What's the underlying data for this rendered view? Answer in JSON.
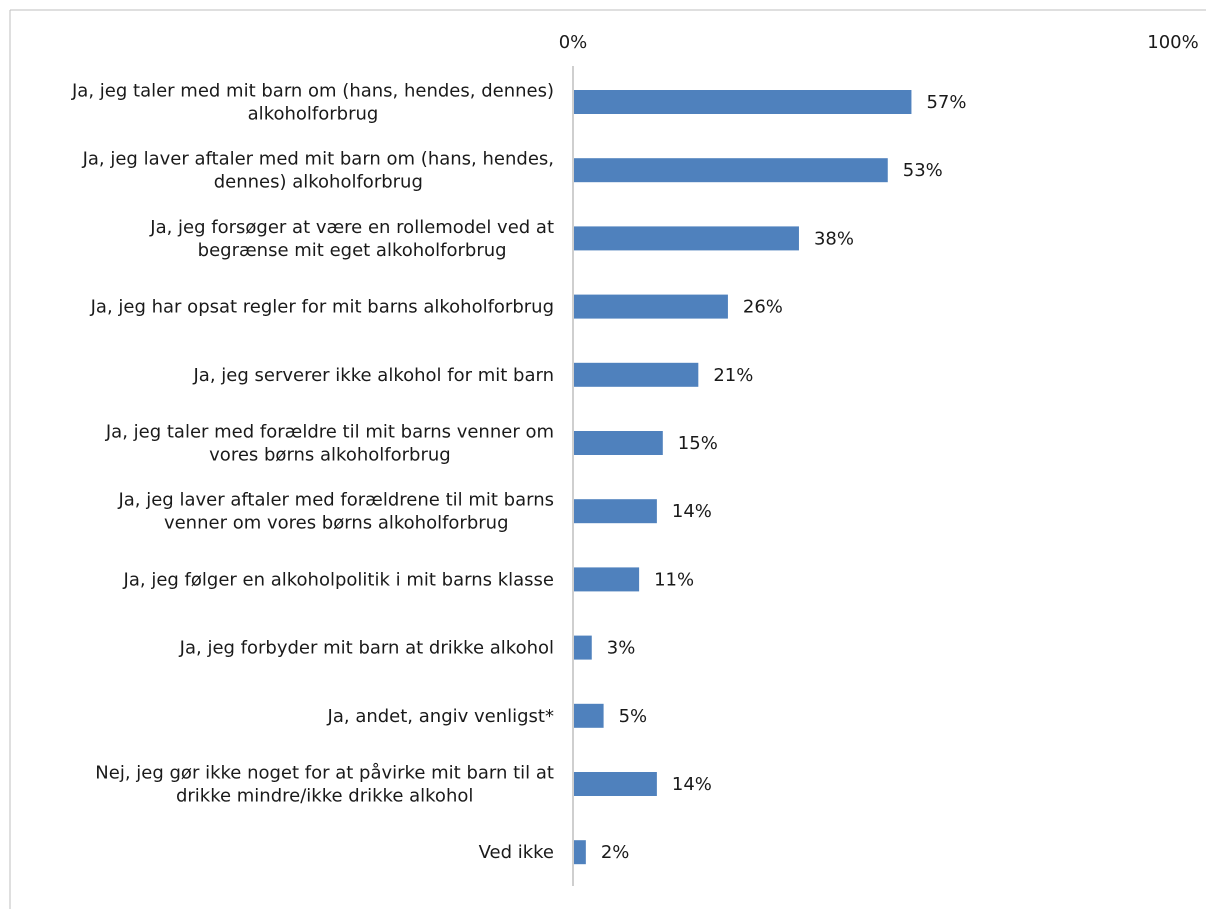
{
  "chart_data": {
    "type": "bar",
    "orientation": "horizontal",
    "title": "",
    "xlabel": "",
    "ylabel": "",
    "xlim": [
      0,
      100
    ],
    "x_ticks": [
      "0%",
      "100%"
    ],
    "x_tick_position": "top",
    "grid": false,
    "legend": "none",
    "bar_color": "#4f81bd",
    "value_suffix": "%",
    "categories": [
      [
        "Ja, jeg taler med mit barn om (hans, hendes, dennes)",
        "alkoholforbrug"
      ],
      [
        "Ja, jeg laver aftaler med mit barn om (hans, hendes,",
        "dennes) alkoholforbrug"
      ],
      [
        "Ja, jeg forsøger at være en rollemodel ved at",
        "begrænse mit eget alkoholforbrug"
      ],
      [
        "Ja, jeg har opsat regler for mit barns alkoholforbrug"
      ],
      [
        "Ja, jeg serverer ikke alkohol for mit barn"
      ],
      [
        "Ja, jeg taler med forældre til mit barns venner om",
        "vores børns alkoholforbrug"
      ],
      [
        "Ja, jeg laver aftaler med forældrene til mit barns",
        "venner om vores børns alkoholforbrug"
      ],
      [
        "Ja, jeg følger en alkoholpolitik i mit barns klasse"
      ],
      [
        "Ja, jeg forbyder mit barn at drikke alkohol"
      ],
      [
        "Ja, andet, angiv venligst*"
      ],
      [
        "Nej, jeg gør ikke noget for at påvirke mit barn til at",
        "drikke mindre/ikke drikke alkohol"
      ],
      [
        "Ved ikke"
      ]
    ],
    "values": [
      57,
      53,
      38,
      26,
      21,
      15,
      14,
      11,
      3,
      5,
      14,
      2
    ],
    "value_labels": [
      "57%",
      "53%",
      "38%",
      "26%",
      "21%",
      "15%",
      "14%",
      "11%",
      "3%",
      "5%",
      "14%",
      "2%"
    ]
  }
}
